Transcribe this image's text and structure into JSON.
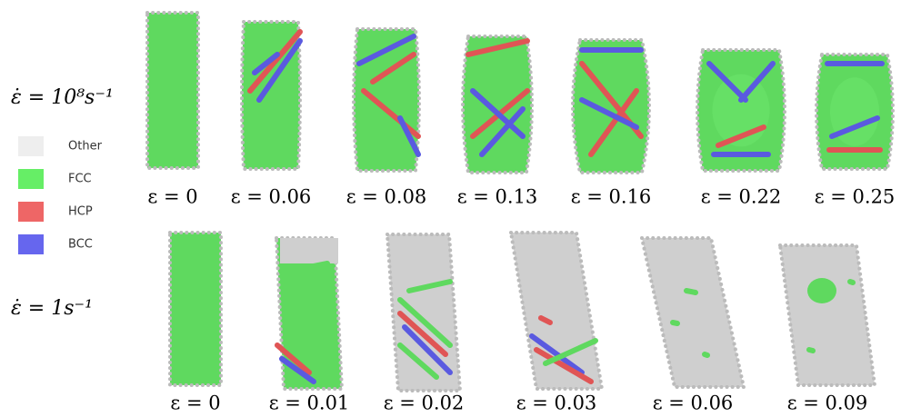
{
  "legend": {
    "items": [
      "Other",
      "FCC",
      "HCP",
      "BCC"
    ]
  },
  "rows": [
    {
      "label": "ε̇ = 10⁸s⁻¹",
      "panels": [
        "ε = 0",
        "ε = 0.06",
        "ε = 0.08",
        "ε = 0.13",
        "ε = 0.16",
        "ε = 0.22",
        "ε = 0.25"
      ]
    },
    {
      "label": "ε̇ = 1s⁻¹",
      "panels": [
        "ε = 0",
        "ε = 0.01",
        "ε = 0.02",
        "ε = 0.03",
        "ε = 0.06",
        "ε = 0.09"
      ]
    }
  ]
}
